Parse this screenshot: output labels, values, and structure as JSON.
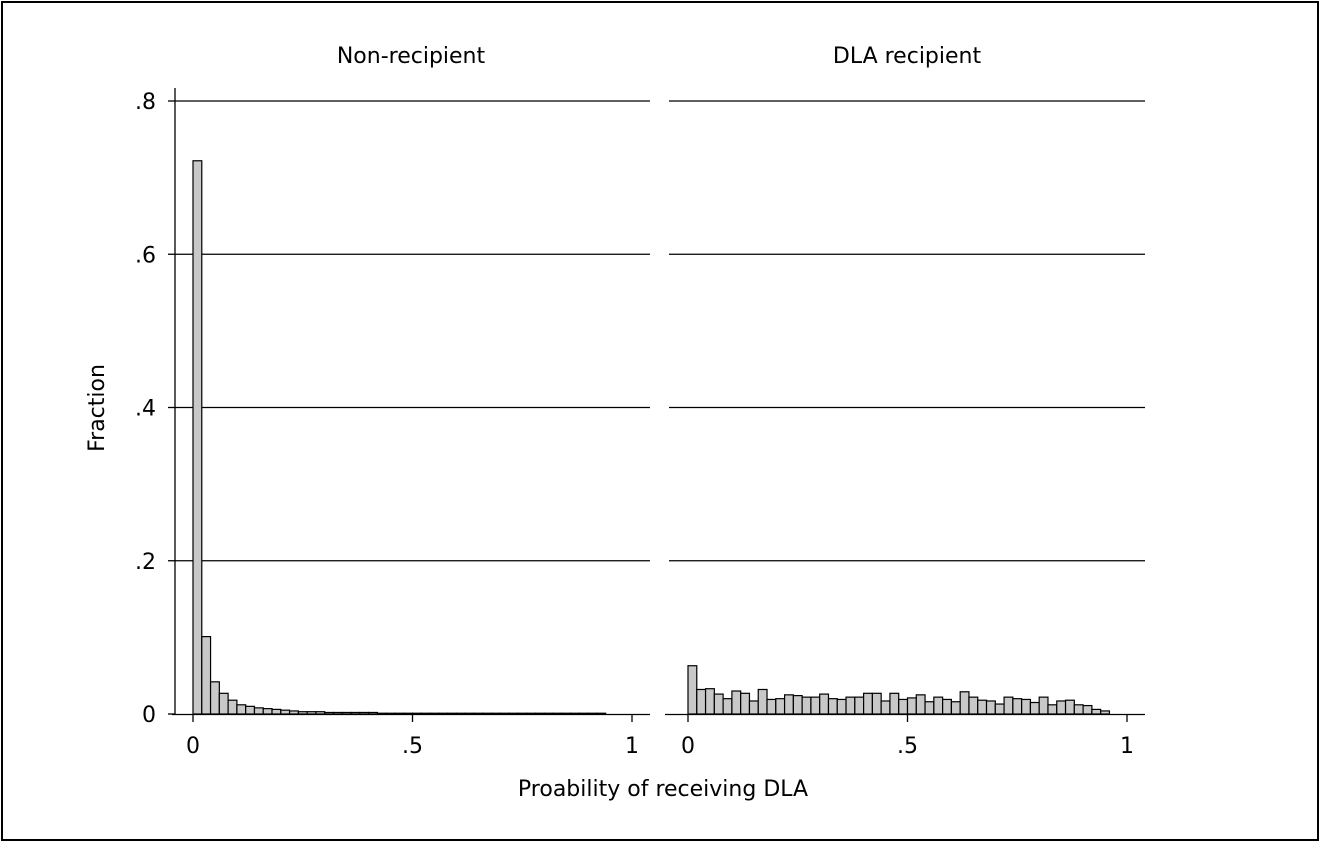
{
  "chart_data": {
    "type": "bar",
    "subtype": "histogram",
    "ylabel": "Fraction",
    "xlabel": "Proability of receiving DLA",
    "ylim": [
      0,
      0.8
    ],
    "xlim": [
      0,
      1
    ],
    "y_ticks": [
      {
        "value": 0,
        "label": "0"
      },
      {
        "value": 0.2,
        "label": ".2"
      },
      {
        "value": 0.4,
        "label": ".4"
      },
      {
        "value": 0.6,
        "label": ".6"
      },
      {
        "value": 0.8,
        "label": ".8"
      }
    ],
    "x_ticks": [
      {
        "value": 0,
        "label": "0"
      },
      {
        "value": 0.5,
        "label": ".5"
      },
      {
        "value": 1,
        "label": "1"
      }
    ],
    "grid": "horizontal",
    "bin_width": 0.02,
    "bar_fill": "#c8c8c8",
    "panels": [
      {
        "title": "Non-recipient",
        "values": [
          0.722,
          0.101,
          0.042,
          0.027,
          0.018,
          0.012,
          0.01,
          0.008,
          0.007,
          0.006,
          0.005,
          0.004,
          0.003,
          0.003,
          0.003,
          0.002,
          0.002,
          0.002,
          0.002,
          0.002,
          0.002,
          0.001,
          0.001,
          0.001,
          0.001,
          0.001,
          0.001,
          0.001,
          0.001,
          0.001,
          0.001,
          0.001,
          0.001,
          0.001,
          0.001,
          0.001,
          0.001,
          0.001,
          0.001,
          0.001,
          0.001,
          0.001,
          0.001,
          0.001,
          0.001,
          0.001,
          0.001
        ]
      },
      {
        "title": "DLA recipient",
        "values": [
          0.063,
          0.032,
          0.033,
          0.026,
          0.02,
          0.03,
          0.027,
          0.017,
          0.032,
          0.019,
          0.02,
          0.025,
          0.024,
          0.022,
          0.022,
          0.026,
          0.02,
          0.019,
          0.022,
          0.022,
          0.027,
          0.027,
          0.017,
          0.027,
          0.019,
          0.021,
          0.025,
          0.016,
          0.022,
          0.019,
          0.016,
          0.029,
          0.022,
          0.018,
          0.017,
          0.013,
          0.022,
          0.02,
          0.019,
          0.015,
          0.022,
          0.012,
          0.017,
          0.018,
          0.012,
          0.011,
          0.006,
          0.004
        ]
      }
    ]
  }
}
